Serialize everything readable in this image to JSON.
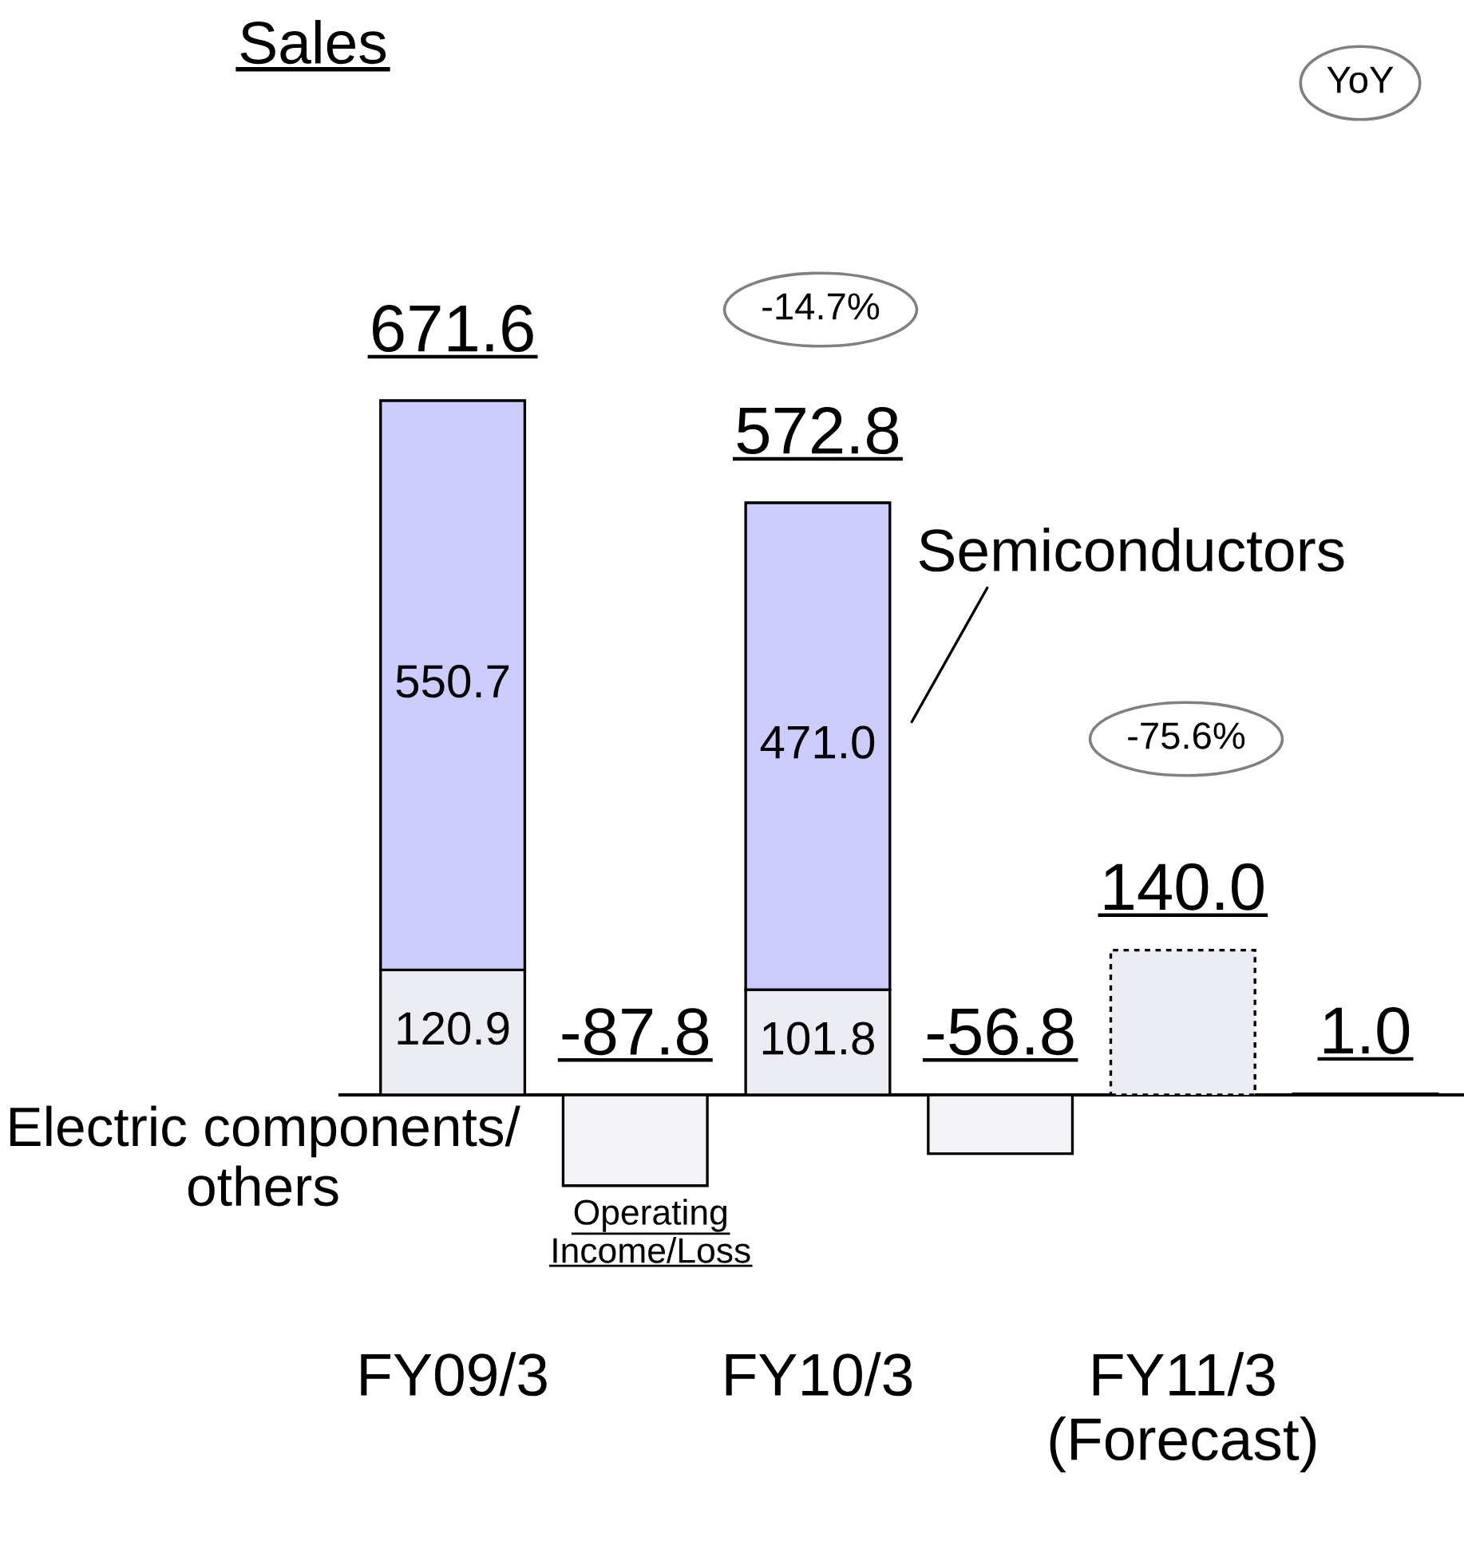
{
  "chart_data": {
    "type": "bar",
    "title": "Sales",
    "stacked": true,
    "categories": [
      "FY09/3",
      null,
      "FY10/3",
      null,
      "FY11/3\n(Forecast)",
      null
    ],
    "series": [
      {
        "name": "Electric components/\nothers",
        "color": "#ececf4",
        "values": [
          120.9,
          null,
          101.8,
          null,
          null,
          null
        ],
        "value_labels": [
          "120.9",
          null,
          "101.8",
          null,
          null,
          null
        ]
      },
      {
        "name": "Semiconductors",
        "color": "#ccccff",
        "values": [
          550.7,
          null,
          471.0,
          null,
          null,
          null
        ],
        "value_labels": [
          "550.7",
          null,
          "471.0",
          null,
          null,
          null
        ]
      },
      {
        "color": "#ececf4",
        "line_style": "dotted",
        "values": [
          null,
          null,
          null,
          null,
          140.0,
          null
        ],
        "value_labels": [
          null,
          null,
          null,
          null,
          "140.0",
          null
        ]
      },
      {
        "name": "Operating\nIncome/Loss",
        "color": "#f3f3f7",
        "values": [
          null,
          -87.8,
          null,
          -56.8,
          null,
          1.0
        ],
        "value_labels": [
          null,
          "-87.8",
          null,
          "-56.8",
          null,
          "1.0"
        ]
      }
    ],
    "totals": [
      "671.6",
      null,
      "572.8",
      null,
      null,
      null
    ],
    "annotations": [
      "YoY",
      "-14.7%",
      "-75.6%"
    ]
  }
}
